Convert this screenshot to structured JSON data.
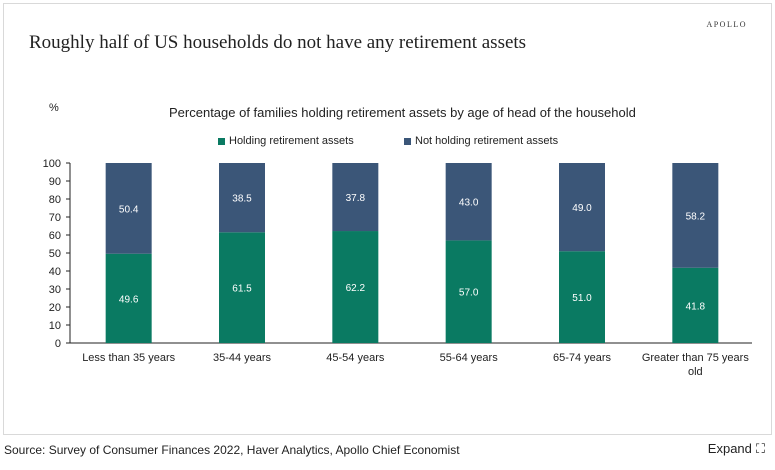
{
  "header": {
    "brand": "APOLLO",
    "title": "Roughly half of US households do not have any retirement assets"
  },
  "footer": {
    "source": "Source: Survey of Consumer Finances 2022, Haver Analytics, Apollo Chief Economist",
    "expand_label": "Expand",
    "expand_icon": "expand-icon"
  },
  "chart_data": {
    "type": "bar",
    "stacked": true,
    "title": "Percentage of families holding retirement assets by age of head of the household",
    "ylabel": "%",
    "xlabel": "",
    "ylim": [
      0,
      100
    ],
    "yticks": [
      0,
      10,
      20,
      30,
      40,
      50,
      60,
      70,
      80,
      90,
      100
    ],
    "categories": [
      "Less than 35 years",
      "35-44 years",
      "45-54 years",
      "55-64 years",
      "65-74 years",
      "Greater than 75 years old"
    ],
    "series": [
      {
        "name": "Holding retirement assets",
        "color": "#0a7a62",
        "values": [
          49.6,
          61.5,
          62.2,
          57.0,
          51.0,
          41.8
        ]
      },
      {
        "name": "Not holding retirement assets",
        "color": "#3b5678",
        "values": [
          50.4,
          38.5,
          37.8,
          43.0,
          49.0,
          58.2
        ]
      }
    ],
    "data_labels": true,
    "legend_position": "top",
    "grid": false
  }
}
